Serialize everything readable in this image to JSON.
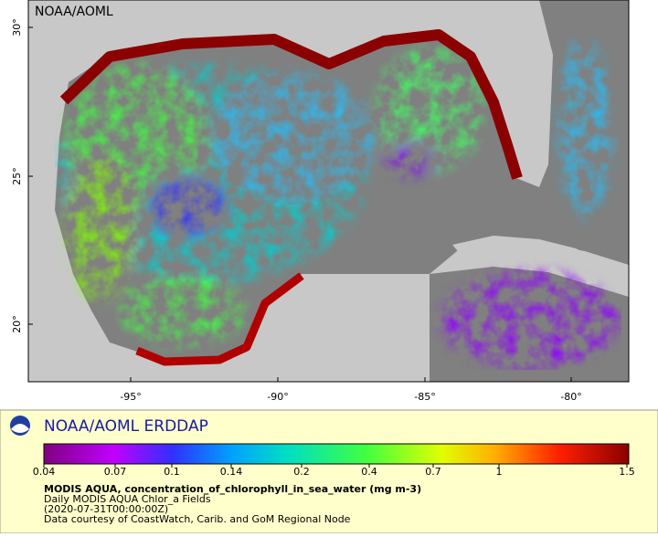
{
  "map": {
    "watermark": "NOAA/AOML",
    "lat_ticks": [
      "30°",
      "25°",
      "20°"
    ],
    "lon_ticks": [
      "-95°",
      "-90°",
      "-85°",
      "-80°"
    ]
  },
  "legend": {
    "brand": "NOAA/AOML ERDDAP",
    "colorbar_ticks": [
      "0.04",
      "0.07",
      "0.1",
      "0.14",
      "0.2",
      "0.4",
      "0.7",
      "1",
      "1.5"
    ],
    "title": "MODIS AQUA, concentration_of_chlorophyll_in_sea_water (mg m-3)",
    "lines": [
      "Daily MODIS AQUA Chlor_a Fields",
      "(2020-07-31T00:00:00Z)",
      "Data courtesy of CoastWatch, Carib. and GoM Regional Node"
    ]
  }
}
